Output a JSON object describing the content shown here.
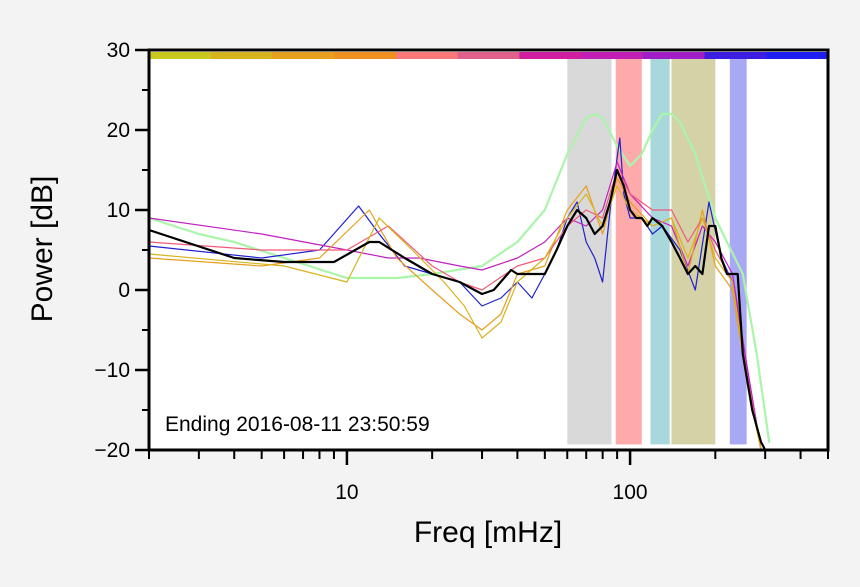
{
  "chart_data": {
    "type": "line",
    "xlabel": "Freq [mHz]",
    "ylabel": "Power [dB]",
    "x_scale": "log",
    "xlim": [
      2,
      500
    ],
    "ylim": [
      -20,
      30
    ],
    "x_ticks": [
      10,
      100
    ],
    "x_tick_labels": [
      "10",
      "100"
    ],
    "y_ticks": [
      -20,
      -10,
      0,
      10,
      20,
      30
    ],
    "y_tick_labels": [
      "−20",
      "−10",
      "0",
      "10",
      "20",
      "30"
    ],
    "grid": false,
    "annotation": "Ending 2016-08-11 23:50:59",
    "top_band_colors": [
      "#c8c81e",
      "#d6b41e",
      "#e6a01e",
      "#f0901e",
      "#fa7878",
      "#e0608c",
      "#d01ea0",
      "#c01eb4",
      "#a01ec8",
      "#3c1ee0",
      "#1e1ef0"
    ],
    "shaded_bands": [
      {
        "x": [
          60,
          86
        ],
        "color": "#d9d9d9"
      },
      {
        "x": [
          89,
          110
        ],
        "color": "#ffaaaa"
      },
      {
        "x": [
          118,
          138
        ],
        "color": "#a8d8dc"
      },
      {
        "x": [
          140,
          200
        ],
        "color": "#d4d2a6"
      },
      {
        "x": [
          225,
          258
        ],
        "color": "#a8a8f4"
      }
    ],
    "series": [
      {
        "color": "#000000",
        "width": 2.2,
        "x": [
          2,
          4,
          6,
          9,
          12,
          13,
          16,
          20,
          25,
          30,
          33,
          38,
          40,
          45,
          50,
          55,
          60,
          65,
          70,
          75,
          80,
          85,
          90,
          95,
          100,
          105,
          110,
          115,
          120,
          130,
          140,
          150,
          160,
          170,
          180,
          190,
          200,
          210,
          220,
          240,
          250,
          270,
          290,
          300
        ],
        "y": [
          7.5,
          4,
          3.5,
          3.5,
          6,
          6,
          4,
          2,
          1,
          -0.5,
          0,
          2.5,
          2,
          2,
          2,
          5,
          8,
          10,
          9,
          7,
          8,
          11,
          15,
          13,
          10,
          9,
          9,
          8,
          9,
          8,
          6,
          4,
          2,
          3,
          2,
          8,
          8,
          4,
          2,
          2,
          -8,
          -15,
          -19,
          -20
        ]
      },
      {
        "color": "#aaf5aa",
        "width": 2.2,
        "x": [
          2,
          3,
          4,
          6,
          10,
          15,
          20,
          30,
          40,
          50,
          60,
          70,
          75,
          80,
          90,
          100,
          110,
          120,
          130,
          140,
          150,
          170,
          200,
          220,
          250,
          280,
          310
        ],
        "y": [
          9,
          7,
          6,
          4,
          1.5,
          1.5,
          2,
          3,
          6,
          10,
          17,
          21.5,
          22,
          21.5,
          18,
          15.5,
          17,
          20,
          22,
          22,
          21,
          17,
          9,
          6,
          2,
          -8,
          -19
        ]
      },
      {
        "color": "#2020d0",
        "width": 1.2,
        "x": [
          2,
          5,
          8,
          11,
          13,
          16,
          20,
          25,
          30,
          35,
          40,
          45,
          50,
          55,
          60,
          65,
          70,
          75,
          80,
          85,
          92,
          95,
          100,
          110,
          120,
          130,
          150,
          170,
          190,
          210,
          230,
          260,
          290
        ],
        "y": [
          5.5,
          4,
          5,
          10.5,
          7,
          3,
          2,
          1,
          -2,
          -1,
          1,
          -1,
          2,
          5,
          9,
          11,
          6,
          4,
          1,
          10,
          19,
          12,
          9,
          9,
          7,
          8,
          5,
          0,
          11,
          4,
          1,
          -10,
          -20
        ]
      },
      {
        "color": "#c020c0",
        "width": 1.2,
        "x": [
          2,
          5,
          10,
          14,
          18,
          25,
          30,
          40,
          50,
          60,
          70,
          80,
          90,
          100,
          120,
          140,
          160,
          180,
          200,
          230,
          260,
          290
        ],
        "y": [
          9,
          7,
          5,
          4,
          4,
          3,
          2.5,
          4,
          6,
          9,
          8,
          10,
          16,
          12,
          9,
          8,
          3,
          8,
          6,
          2,
          -10,
          -20
        ]
      },
      {
        "color": "#e6a01e",
        "width": 1.2,
        "x": [
          2,
          5,
          8,
          12,
          15,
          20,
          25,
          30,
          35,
          40,
          50,
          60,
          70,
          80,
          90,
          100,
          120,
          140,
          160,
          180,
          200,
          230,
          260,
          290
        ],
        "y": [
          4,
          3,
          4,
          10,
          4,
          0,
          -3,
          -5,
          -3,
          2,
          3,
          10,
          13,
          7,
          14,
          11,
          8,
          9,
          2,
          10,
          3,
          0,
          -12,
          -20
        ]
      },
      {
        "color": "#f05a78",
        "width": 1.2,
        "x": [
          2,
          5,
          10,
          14,
          20,
          25,
          30,
          40,
          50,
          60,
          70,
          80,
          90,
          100,
          120,
          140,
          160,
          180,
          200,
          230,
          260,
          290
        ],
        "y": [
          6,
          5,
          5,
          8,
          3,
          1,
          0,
          3,
          4,
          8,
          10,
          9,
          15,
          12,
          10,
          10,
          6,
          9,
          5,
          1,
          -11,
          -20
        ]
      },
      {
        "color": "#d8b41e",
        "width": 1.2,
        "x": [
          2,
          6,
          10,
          13,
          17,
          22,
          26,
          30,
          35,
          40,
          50,
          60,
          70,
          80,
          90,
          100,
          120,
          140,
          160,
          180,
          200,
          230,
          260,
          290
        ],
        "y": [
          4.5,
          3,
          1,
          9,
          5,
          1,
          -2,
          -6,
          -4,
          1,
          4,
          9,
          12,
          8,
          13,
          10,
          8,
          9,
          4,
          9,
          4,
          1,
          -12,
          -20
        ]
      }
    ]
  }
}
